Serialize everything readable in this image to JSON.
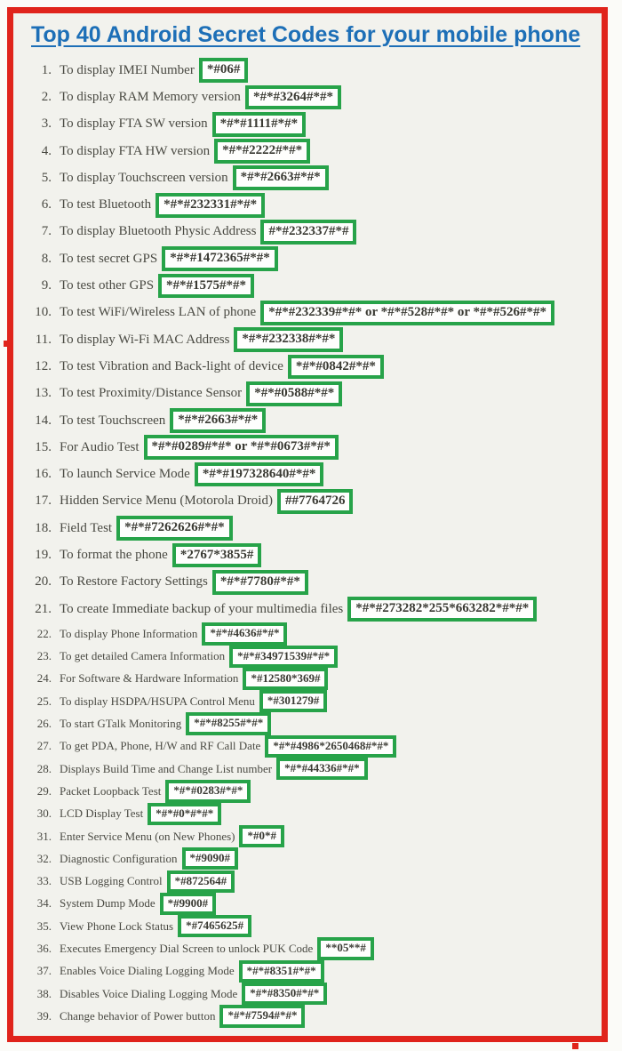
{
  "title": "Top 40 Android Secret Codes for your mobile phone",
  "colors": {
    "frame_red": "#e0241c",
    "code_box_green": "#27a349",
    "title_blue": "#1d6fb7",
    "body_text": "#4a4a43",
    "content_background": "#f2f2ed"
  },
  "items": [
    {
      "num": "1.",
      "label": "To display IMEI Number",
      "code": "*#06#",
      "size": "big"
    },
    {
      "num": "2.",
      "label": "To display RAM Memory version",
      "code": "*#*#3264#*#*",
      "size": "big"
    },
    {
      "num": "3.",
      "label": "To display FTA SW version",
      "code": "*#*#1111#*#*",
      "size": "big"
    },
    {
      "num": "4.",
      "label": "To display FTA HW version",
      "code": "*#*#2222#*#*",
      "size": "big"
    },
    {
      "num": "5.",
      "label": "To display Touchscreen version",
      "code": "*#*#2663#*#*",
      "size": "big"
    },
    {
      "num": "6.",
      "label": "To test Bluetooth",
      "code": "*#*#232331#*#*",
      "size": "big"
    },
    {
      "num": "7.",
      "label": "To display Bluetooth Physic Address",
      "code": "#*#232337#*#",
      "size": "big"
    },
    {
      "num": "8.",
      "label": "To test secret GPS",
      "code": "*#*#1472365#*#*",
      "size": "big"
    },
    {
      "num": "9.",
      "label": "To test other GPS",
      "code": "*#*#1575#*#*",
      "size": "big"
    },
    {
      "num": "10.",
      "label": "To test WiFi/Wireless LAN of phone",
      "code": "*#*#232339#*#* or *#*#528#*#* or *#*#526#*#*",
      "size": "big"
    },
    {
      "num": "11.",
      "label": "To display Wi-Fi MAC Address",
      "code": "*#*#232338#*#*",
      "size": "big"
    },
    {
      "num": "12.",
      "label": "To test Vibration and Back-light of device",
      "code": "*#*#0842#*#*",
      "size": "big"
    },
    {
      "num": "13.",
      "label": "To test Proximity/Distance Sensor",
      "code": "*#*#0588#*#*",
      "size": "big"
    },
    {
      "num": "14.",
      "label": "To test Touchscreen",
      "code": "*#*#2663#*#*",
      "size": "big"
    },
    {
      "num": "15.",
      "label": "For Audio Test",
      "code": "*#*#0289#*#* or *#*#0673#*#*",
      "size": "big"
    },
    {
      "num": "16.",
      "label": "To launch Service Mode",
      "code": "*#*#197328640#*#*",
      "size": "big"
    },
    {
      "num": "17.",
      "label": "Hidden Service Menu (Motorola Droid)",
      "code": "##7764726",
      "size": "big"
    },
    {
      "num": "18.",
      "label": "Field Test",
      "code": "*#*#7262626#*#*",
      "size": "big"
    },
    {
      "num": "19.",
      "label": "To format the phone",
      "code": "*2767*3855#",
      "size": "big"
    },
    {
      "num": "20.",
      "label": "To Restore Factory Settings",
      "code": "*#*#7780#*#*",
      "size": "big"
    },
    {
      "num": "21.",
      "label": "To create Immediate backup of your multimedia files",
      "code": "*#*#273282*255*663282*#*#*",
      "size": "big"
    },
    {
      "num": "22.",
      "label": "To display Phone Information",
      "code": "*#*#4636#*#*",
      "size": "small"
    },
    {
      "num": "23.",
      "label": "To get detailed Camera Information",
      "code": "*#*#34971539#*#*",
      "size": "small"
    },
    {
      "num": "24.",
      "label": "For Software & Hardware Information",
      "code": "*#12580*369#",
      "size": "small"
    },
    {
      "num": "25.",
      "label": "To display HSDPA/HSUPA Control Menu",
      "code": "*#301279#",
      "size": "small"
    },
    {
      "num": "26.",
      "label": "To start GTalk Monitoring",
      "code": "*#*#8255#*#*",
      "size": "small"
    },
    {
      "num": "27.",
      "label": "To get PDA, Phone, H/W and RF Call Date",
      "code": "*#*#4986*2650468#*#*",
      "size": "small"
    },
    {
      "num": "28.",
      "label": "Displays Build Time and Change List number",
      "code": "*#*#44336#*#*",
      "size": "small"
    },
    {
      "num": "29.",
      "label": "Packet Loopback Test",
      "code": "*#*#0283#*#*",
      "size": "small"
    },
    {
      "num": "30.",
      "label": "LCD  Display Test",
      "code": "*#*#0*#*#*",
      "size": "small"
    },
    {
      "num": "31.",
      "label": "Enter Service Menu (on New Phones)",
      "code": "*#0*#",
      "size": "small"
    },
    {
      "num": "32.",
      "label": "Diagnostic Configuration",
      "code": "*#9090#",
      "size": "small"
    },
    {
      "num": "33.",
      "label": "USB Logging Control",
      "code": "*#872564#",
      "size": "small"
    },
    {
      "num": "34.",
      "label": "System Dump Mode",
      "code": "*#9900#",
      "size": "small"
    },
    {
      "num": "35.",
      "label": "View Phone Lock Status",
      "code": "*#7465625#",
      "size": "small"
    },
    {
      "num": "36.",
      "label": "Executes Emergency Dial Screen to unlock PUK Code",
      "code": "**05**#",
      "size": "small"
    },
    {
      "num": "37.",
      "label": "Enables Voice Dialing Logging Mode",
      "code": "*#*#8351#*#*",
      "size": "small"
    },
    {
      "num": "38.",
      "label": "Disables Voice Dialing Logging Mode",
      "code": "*#*#8350#*#*",
      "size": "small"
    },
    {
      "num": "39.",
      "label": "Change behavior of Power button",
      "code": "*#*#7594#*#*",
      "size": "small"
    }
  ]
}
